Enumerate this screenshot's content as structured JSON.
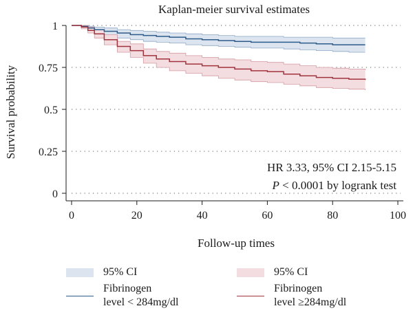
{
  "chart_data": {
    "type": "line",
    "title": "Kaplan-meier survival estimates",
    "xlabel": "Follow-up times",
    "ylabel": "Survival probability",
    "xlim": [
      0,
      100
    ],
    "ylim": [
      0,
      1
    ],
    "xticks": [
      0,
      20,
      40,
      60,
      80,
      100
    ],
    "xtick_labels": [
      "0",
      "20",
      "40",
      "60",
      "80",
      "100"
    ],
    "yticks": [
      0,
      0.25,
      0.5,
      0.75,
      1
    ],
    "ytick_labels": [
      "0",
      "0.25",
      "0.5",
      "0.75",
      "1"
    ],
    "grid": "horizontal dotted",
    "annotations": {
      "hr": "HR 3.33, 95% CI 2.15-5.15",
      "p_italic": "P",
      "p_rest": " < 0.0001 by logrank test"
    },
    "series": [
      {
        "name": "Fibrinogen level < 284mg/dl",
        "color": "#2c5a8a",
        "ci_color": "#dbe4ef",
        "ci_edge": "#8fa8c6",
        "x": [
          0,
          3,
          5,
          7,
          10,
          14,
          18,
          22,
          26,
          30,
          35,
          40,
          45,
          50,
          55,
          60,
          65,
          70,
          75,
          80,
          85,
          90
        ],
        "y": [
          1.0,
          0.995,
          0.985,
          0.975,
          0.965,
          0.955,
          0.945,
          0.94,
          0.935,
          0.93,
          0.92,
          0.915,
          0.91,
          0.905,
          0.9,
          0.9,
          0.9,
          0.895,
          0.89,
          0.885,
          0.885,
          0.885
        ],
        "lower": [
          1.0,
          0.985,
          0.97,
          0.955,
          0.94,
          0.925,
          0.915,
          0.905,
          0.9,
          0.895,
          0.885,
          0.88,
          0.875,
          0.87,
          0.865,
          0.865,
          0.86,
          0.855,
          0.85,
          0.845,
          0.84,
          0.84
        ],
        "upper": [
          1.0,
          1.0,
          0.995,
          0.99,
          0.985,
          0.975,
          0.97,
          0.965,
          0.96,
          0.955,
          0.95,
          0.945,
          0.94,
          0.935,
          0.935,
          0.935,
          0.93,
          0.93,
          0.93,
          0.925,
          0.925,
          0.925
        ]
      },
      {
        "name": "Fibrinogen level ≥284mg/dl",
        "color": "#a0323c",
        "ci_color": "#f4dde0",
        "ci_edge": "#d49aa1",
        "x": [
          0,
          3,
          5,
          7,
          10,
          14,
          18,
          22,
          26,
          30,
          35,
          40,
          45,
          50,
          55,
          60,
          65,
          70,
          75,
          80,
          85,
          90
        ],
        "y": [
          1.0,
          0.99,
          0.97,
          0.95,
          0.915,
          0.875,
          0.85,
          0.82,
          0.8,
          0.785,
          0.77,
          0.76,
          0.75,
          0.74,
          0.73,
          0.725,
          0.71,
          0.7,
          0.69,
          0.685,
          0.68,
          0.675
        ],
        "lower": [
          1.0,
          0.98,
          0.955,
          0.925,
          0.885,
          0.84,
          0.81,
          0.775,
          0.75,
          0.73,
          0.715,
          0.7,
          0.685,
          0.675,
          0.665,
          0.66,
          0.65,
          0.64,
          0.63,
          0.625,
          0.62,
          0.615
        ],
        "upper": [
          1.0,
          1.0,
          0.99,
          0.975,
          0.945,
          0.905,
          0.89,
          0.86,
          0.845,
          0.835,
          0.82,
          0.81,
          0.8,
          0.795,
          0.785,
          0.78,
          0.77,
          0.76,
          0.75,
          0.745,
          0.74,
          0.735
        ]
      }
    ]
  },
  "legend": {
    "ci_blue_label": "95% CI",
    "ci_red_label": "95% CI",
    "line_blue_label_1": "Fibrinogen",
    "line_blue_label_2": "level < 284mg/dl",
    "line_red_label_1": "Fibrinogen",
    "line_red_label_2": "level ≥284mg/dl"
  }
}
